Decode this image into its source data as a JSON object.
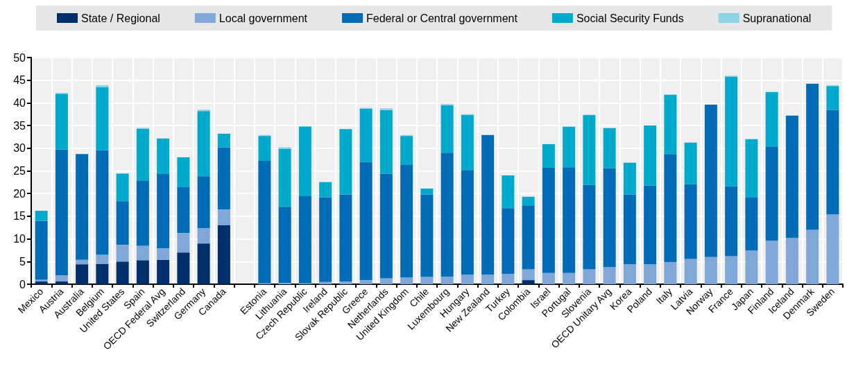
{
  "chart_data": {
    "type": "bar",
    "stacked": true,
    "legend": "top",
    "grid": true,
    "categories": [
      "Mexico",
      "Austria",
      "Australia",
      "Belgium",
      "United States",
      "Spain",
      "OECD Federal Avg",
      "Switzerland",
      "Germany",
      "Canada",
      null,
      "Estonia",
      "Lithuania",
      "Czech Republic",
      "Ireland",
      "Slovak Republic",
      "Greece",
      "Netherlands",
      "United Kingdom",
      "Chile",
      "Luxembourg",
      "Hungary",
      "New Zealand",
      "Turkey",
      "Colombia",
      "Israel",
      "Portugal",
      "Slovenia",
      "OECD Unitary Avg",
      "Korea",
      "Poland",
      "Italy",
      "Latvia",
      "Norway",
      "France",
      "Japan",
      "Finland",
      "Iceland",
      "Denmark",
      "Sweden"
    ],
    "ylim": [
      0,
      50
    ],
    "yticks": [
      0,
      5,
      10,
      15,
      20,
      25,
      30,
      35,
      40,
      45,
      50
    ],
    "series": [
      {
        "name": "State / Regional",
        "color": "#002f6c",
        "values": [
          0.6,
          0.6,
          4.4,
          4.5,
          5.0,
          5.3,
          5.4,
          7.0,
          9.0,
          13.0,
          null,
          null,
          null,
          null,
          null,
          null,
          null,
          null,
          null,
          null,
          null,
          null,
          null,
          null,
          0.9,
          null,
          null,
          null,
          null,
          null,
          null,
          null,
          null,
          null,
          null,
          null,
          null,
          null,
          null,
          null
        ]
      },
      {
        "name": "Local government",
        "color": "#7fa8d9",
        "values": [
          0.4,
          1.4,
          1.0,
          2.0,
          3.7,
          3.2,
          2.5,
          4.3,
          3.4,
          3.5,
          null,
          0.2,
          0.3,
          0.2,
          0.5,
          0.6,
          0.9,
          1.3,
          1.5,
          1.6,
          1.7,
          2.1,
          2.1,
          2.3,
          2.4,
          2.5,
          2.5,
          3.3,
          3.8,
          4.4,
          4.4,
          4.9,
          5.6,
          6.0,
          6.2,
          7.4,
          9.6,
          10.2,
          12.0,
          15.4
        ]
      },
      {
        "name": "Federal or Central government",
        "color": "#006bb6",
        "values": [
          13.0,
          27.7,
          23.3,
          23.1,
          9.6,
          14.4,
          16.4,
          10.1,
          11.4,
          13.7,
          null,
          27.0,
          16.8,
          19.2,
          18.7,
          19.2,
          26.1,
          23.1,
          24.9,
          18.2,
          27.3,
          23.1,
          30.8,
          14.5,
          14.1,
          23.2,
          23.3,
          18.6,
          21.8,
          15.4,
          17.4,
          23.8,
          16.5,
          33.6,
          15.4,
          11.7,
          20.8,
          27.0,
          32.2,
          23.0
        ]
      },
      {
        "name": "Social Security Funds",
        "color": "#00aacc",
        "values": [
          2.2,
          12.3,
          null,
          13.9,
          6.1,
          11.4,
          7.8,
          6.6,
          14.4,
          3.0,
          null,
          5.5,
          12.8,
          15.4,
          3.3,
          14.4,
          11.7,
          14.0,
          6.3,
          1.3,
          10.5,
          12.1,
          null,
          7.2,
          1.9,
          5.2,
          8.9,
          15.4,
          8.8,
          7.0,
          13.2,
          13.1,
          9.1,
          null,
          24.2,
          12.9,
          12.0,
          null,
          null,
          5.3
        ]
      },
      {
        "name": "Supranational",
        "color": "#8cd3e6",
        "values": [
          null,
          0.2,
          null,
          0.4,
          null,
          0.2,
          0.1,
          null,
          0.3,
          null,
          null,
          0.2,
          0.3,
          null,
          0.1,
          null,
          0.2,
          0.4,
          0.2,
          null,
          0.3,
          0.2,
          null,
          null,
          null,
          null,
          0.1,
          0.1,
          0.1,
          null,
          null,
          0.1,
          0.1,
          null,
          0.2,
          null,
          null,
          null,
          0.1,
          0.2
        ]
      }
    ]
  }
}
